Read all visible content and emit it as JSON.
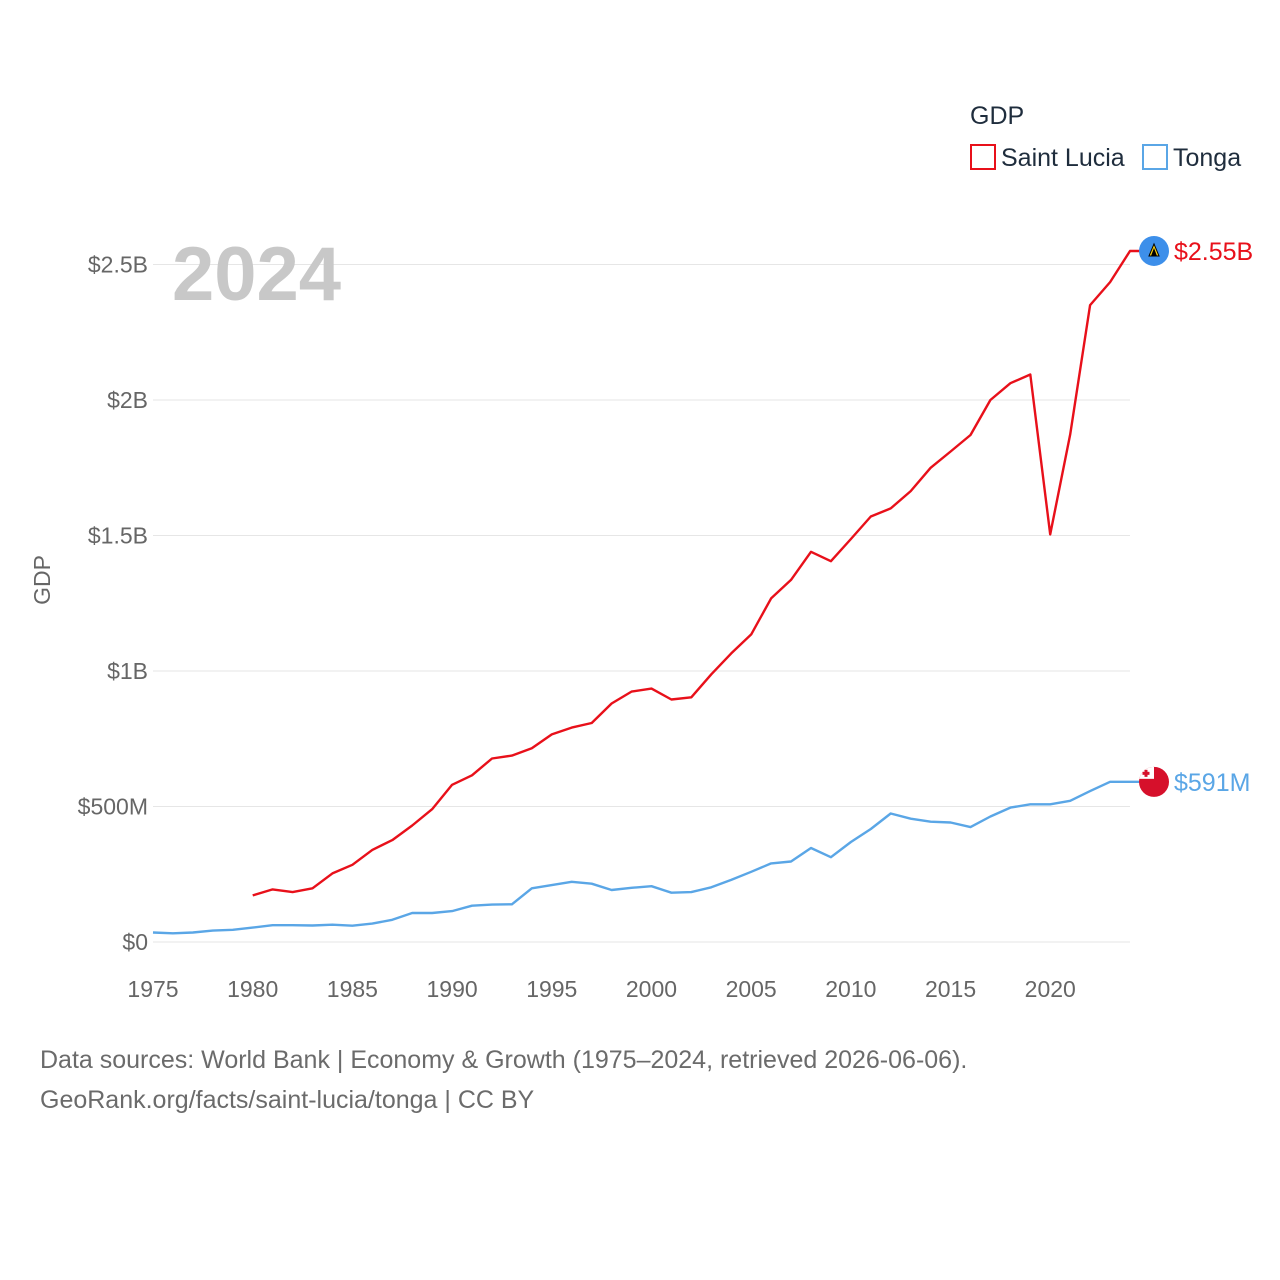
{
  "chart_data": {
    "type": "line",
    "title": "GDP",
    "ylabel": "GDP",
    "xlabel": "",
    "current_year_label": "2024",
    "xlim": [
      1975,
      2024
    ],
    "ylim": [
      0,
      2600000000
    ],
    "grid": true,
    "legend_position": "top-right",
    "x_ticks": [
      {
        "value": 1975,
        "label": "1975"
      },
      {
        "value": 1980,
        "label": "1980"
      },
      {
        "value": 1985,
        "label": "1985"
      },
      {
        "value": 1990,
        "label": "1990"
      },
      {
        "value": 1995,
        "label": "1995"
      },
      {
        "value": 2000,
        "label": "2000"
      },
      {
        "value": 2005,
        "label": "2005"
      },
      {
        "value": 2010,
        "label": "2010"
      },
      {
        "value": 2015,
        "label": "2015"
      },
      {
        "value": 2020,
        "label": "2020"
      }
    ],
    "y_ticks": [
      {
        "value": 0,
        "label": "$0"
      },
      {
        "value": 500000000,
        "label": "$500M"
      },
      {
        "value": 1000000000,
        "label": "$1B"
      },
      {
        "value": 1500000000,
        "label": "$1.5B"
      },
      {
        "value": 2000000000,
        "label": "$2B"
      },
      {
        "value": 2500000000,
        "label": "$2.5B"
      }
    ],
    "series": [
      {
        "name": "Saint Lucia",
        "color": "#e8101a",
        "end_label": "$2.55B",
        "flag": "saint-lucia-flag",
        "x": [
          1980,
          1981,
          1982,
          1983,
          1984,
          1985,
          1986,
          1987,
          1988,
          1989,
          1990,
          1991,
          1992,
          1993,
          1994,
          1995,
          1996,
          1997,
          1998,
          1999,
          2000,
          2001,
          2002,
          2003,
          2004,
          2005,
          2006,
          2007,
          2008,
          2009,
          2010,
          2011,
          2012,
          2013,
          2014,
          2015,
          2016,
          2017,
          2018,
          2019,
          2020,
          2021,
          2022,
          2023,
          2024
        ],
        "values": [
          172000000,
          194000000,
          184000000,
          198000000,
          253000000,
          285000000,
          340000000,
          376000000,
          430000000,
          490000000,
          580000000,
          615000000,
          677000000,
          688000000,
          715000000,
          766000000,
          791000000,
          808000000,
          880000000,
          924000000,
          935000000,
          895000000,
          903000000,
          988000000,
          1065000000,
          1135000000,
          1268000000,
          1336000000,
          1440000000,
          1405000000,
          1487000000,
          1570000000,
          1600000000,
          1664000000,
          1750000000,
          1810000000,
          1871000000,
          2000000000,
          2062000000,
          2094000000,
          1504000000,
          1873000000,
          2350000000,
          2435000000,
          2550000000
        ]
      },
      {
        "name": "Tonga",
        "color": "#5aa6e6",
        "end_label": "$591M",
        "flag": "tonga-flag",
        "x": [
          1975,
          1976,
          1977,
          1978,
          1979,
          1980,
          1981,
          1982,
          1983,
          1984,
          1985,
          1986,
          1987,
          1988,
          1989,
          1990,
          1991,
          1992,
          1993,
          1994,
          1995,
          1996,
          1997,
          1998,
          1999,
          2000,
          2001,
          2002,
          2003,
          2004,
          2005,
          2006,
          2007,
          2008,
          2009,
          2010,
          2011,
          2012,
          2013,
          2014,
          2015,
          2016,
          2017,
          2018,
          2019,
          2020,
          2021,
          2022,
          2023,
          2024
        ],
        "values": [
          35000000,
          32000000,
          35000000,
          42000000,
          45000000,
          53000000,
          62000000,
          62000000,
          61000000,
          64000000,
          60000000,
          68000000,
          82000000,
          107000000,
          107000000,
          114000000,
          134000000,
          138000000,
          139000000,
          198000000,
          210000000,
          222000000,
          215000000,
          192000000,
          200000000,
          206000000,
          182000000,
          184000000,
          202000000,
          229000000,
          259000000,
          290000000,
          297000000,
          347000000,
          313000000,
          369000000,
          417000000,
          474000000,
          455000000,
          444000000,
          441000000,
          424000000,
          463000000,
          496000000,
          508000000,
          508000000,
          521000000,
          557000000,
          591000000,
          591000000
        ]
      }
    ]
  },
  "footer": {
    "line1": "Data sources: World Bank | Economy & Growth (1975–2024, retrieved 2026-06-06).",
    "line2": "GeoRank.org/facts/saint-lucia/tonga | CC BY"
  }
}
